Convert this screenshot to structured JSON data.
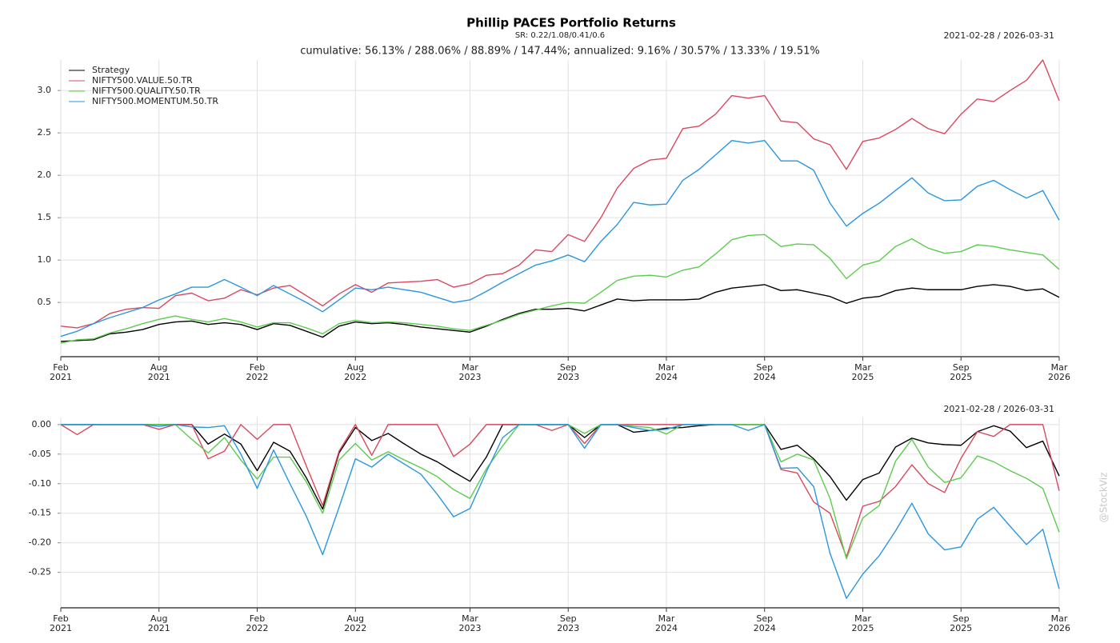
{
  "watermark": "@StockViz",
  "chart_data": [
    {
      "type": "line",
      "title": "Phillip PACES Portfolio Returns",
      "subtitle": "SR: 0.22/1.08/0.41/0.6",
      "annotation": "cumulative: 56.13% / 288.06% / 88.89% / 147.44%; annualized: 9.16% / 30.57% / 13.33% / 19.51%",
      "date_range": "2021-02-28 / 2026-03-31",
      "legend": "upper left",
      "grid": true,
      "x": [
        "2021-02",
        "2021-03",
        "2021-04",
        "2021-05",
        "2021-06",
        "2021-07",
        "2021-08",
        "2021-09",
        "2021-10",
        "2021-11",
        "2021-12",
        "2022-01",
        "2022-02",
        "2022-03",
        "2022-04",
        "2022-05",
        "2022-06",
        "2022-07",
        "2022-08",
        "2022-09",
        "2022-10",
        "2022-11",
        "2022-12",
        "2023-01",
        "2023-02",
        "2023-03",
        "2023-04",
        "2023-05",
        "2023-06",
        "2023-07",
        "2023-08",
        "2023-09",
        "2023-10",
        "2023-11",
        "2023-12",
        "2024-01",
        "2024-02",
        "2024-03",
        "2024-04",
        "2024-05",
        "2024-06",
        "2024-07",
        "2024-08",
        "2024-09",
        "2024-10",
        "2024-11",
        "2024-12",
        "2025-01",
        "2025-02",
        "2025-03",
        "2025-04",
        "2025-05",
        "2025-06",
        "2025-07",
        "2025-08",
        "2025-09",
        "2025-10",
        "2025-11",
        "2025-12",
        "2026-01",
        "2026-02",
        "2026-03"
      ],
      "xticks": [
        {
          "value": "2021-02",
          "label": "Feb 2021"
        },
        {
          "value": "2021-08",
          "label": "Aug 2021"
        },
        {
          "value": "2022-02",
          "label": "Feb 2022"
        },
        {
          "value": "2022-08",
          "label": "Aug 2022"
        },
        {
          "value": "2023-03",
          "label": "Mar 2023"
        },
        {
          "value": "2023-09",
          "label": "Sep 2023"
        },
        {
          "value": "2024-03",
          "label": "Mar 2024"
        },
        {
          "value": "2024-09",
          "label": "Sep 2024"
        },
        {
          "value": "2025-03",
          "label": "Mar 2025"
        },
        {
          "value": "2025-09",
          "label": "Sep 2025"
        },
        {
          "value": "2026-03",
          "label": "Mar 2026"
        }
      ],
      "ylim": [
        -0.14,
        3.36
      ],
      "yticks": [
        {
          "value": 0.5,
          "label": "0.5"
        },
        {
          "value": 1,
          "label": "1.0"
        },
        {
          "value": 1.5,
          "label": "1.5"
        },
        {
          "value": 2,
          "label": "2.0"
        },
        {
          "value": 2.5,
          "label": "2.5"
        },
        {
          "value": 3,
          "label": "3.0"
        }
      ],
      "series": [
        {
          "name": "Strategy",
          "color": "#000000",
          "values": [
            0.04,
            0.05,
            0.06,
            0.13,
            0.15,
            0.18,
            0.24,
            0.27,
            0.28,
            0.24,
            0.26,
            0.24,
            0.18,
            0.25,
            0.23,
            0.16,
            0.09,
            0.22,
            0.27,
            0.25,
            0.26,
            0.24,
            0.21,
            0.19,
            0.17,
            0.15,
            0.22,
            0.3,
            0.37,
            0.42,
            0.42,
            0.43,
            0.4,
            0.47,
            0.54,
            0.52,
            0.53,
            0.53,
            0.53,
            0.54,
            0.62,
            0.67,
            0.69,
            0.71,
            0.64,
            0.65,
            0.61,
            0.57,
            0.49,
            0.55,
            0.57,
            0.64,
            0.67,
            0.65,
            0.65,
            0.65,
            0.69,
            0.71,
            0.69,
            0.64,
            0.66,
            0.56
          ]
        },
        {
          "name": "NIFTY500.VALUE.50.TR",
          "color": "#d9485f",
          "values": [
            0.22,
            0.2,
            0.25,
            0.37,
            0.42,
            0.44,
            0.43,
            0.58,
            0.61,
            0.52,
            0.55,
            0.65,
            0.59,
            0.67,
            0.7,
            0.58,
            0.46,
            0.6,
            0.71,
            0.62,
            0.73,
            0.74,
            0.75,
            0.77,
            0.68,
            0.72,
            0.82,
            0.84,
            0.94,
            1.12,
            1.1,
            1.3,
            1.22,
            1.5,
            1.85,
            2.08,
            2.18,
            2.2,
            2.55,
            2.58,
            2.72,
            2.94,
            2.91,
            2.94,
            2.64,
            2.62,
            2.43,
            2.36,
            2.07,
            2.4,
            2.44,
            2.54,
            2.67,
            2.55,
            2.49,
            2.72,
            2.9,
            2.87,
            3.0,
            3.12,
            3.36,
            2.88
          ]
        },
        {
          "name": "NIFTY500.QUALITY.50.TR",
          "color": "#5ccc4e",
          "values": [
            0.02,
            0.06,
            0.07,
            0.14,
            0.19,
            0.25,
            0.3,
            0.34,
            0.3,
            0.27,
            0.31,
            0.27,
            0.21,
            0.26,
            0.26,
            0.2,
            0.13,
            0.25,
            0.29,
            0.26,
            0.27,
            0.26,
            0.24,
            0.22,
            0.19,
            0.17,
            0.23,
            0.29,
            0.36,
            0.41,
            0.46,
            0.5,
            0.49,
            0.62,
            0.76,
            0.81,
            0.82,
            0.8,
            0.88,
            0.92,
            1.07,
            1.24,
            1.29,
            1.3,
            1.16,
            1.19,
            1.18,
            1.02,
            0.78,
            0.94,
            0.99,
            1.16,
            1.25,
            1.14,
            1.08,
            1.1,
            1.18,
            1.16,
            1.12,
            1.09,
            1.06,
            0.89
          ]
        },
        {
          "name": "NIFTY500.MOMENTUM.50.TR",
          "color": "#2a96e0",
          "values": [
            0.1,
            0.16,
            0.25,
            0.32,
            0.38,
            0.44,
            0.53,
            0.6,
            0.68,
            0.68,
            0.77,
            0.68,
            0.58,
            0.7,
            0.6,
            0.5,
            0.39,
            0.53,
            0.67,
            0.65,
            0.68,
            0.65,
            0.62,
            0.56,
            0.5,
            0.53,
            0.63,
            0.74,
            0.84,
            0.94,
            0.99,
            1.06,
            0.98,
            1.22,
            1.42,
            1.68,
            1.65,
            1.66,
            1.94,
            2.07,
            2.24,
            2.41,
            2.38,
            2.41,
            2.17,
            2.17,
            2.06,
            1.67,
            1.4,
            1.55,
            1.67,
            1.82,
            1.97,
            1.79,
            1.7,
            1.71,
            1.87,
            1.94,
            1.83,
            1.73,
            1.82,
            1.47
          ]
        }
      ]
    },
    {
      "type": "line",
      "date_range": "2021-02-28 / 2026-03-31",
      "grid": true,
      "x": [
        "2021-02",
        "2021-03",
        "2021-04",
        "2021-05",
        "2021-06",
        "2021-07",
        "2021-08",
        "2021-09",
        "2021-10",
        "2021-11",
        "2021-12",
        "2022-01",
        "2022-02",
        "2022-03",
        "2022-04",
        "2022-05",
        "2022-06",
        "2022-07",
        "2022-08",
        "2022-09",
        "2022-10",
        "2022-11",
        "2022-12",
        "2023-01",
        "2023-02",
        "2023-03",
        "2023-04",
        "2023-05",
        "2023-06",
        "2023-07",
        "2023-08",
        "2023-09",
        "2023-10",
        "2023-11",
        "2023-12",
        "2024-01",
        "2024-02",
        "2024-03",
        "2024-04",
        "2024-05",
        "2024-06",
        "2024-07",
        "2024-08",
        "2024-09",
        "2024-10",
        "2024-11",
        "2024-12",
        "2025-01",
        "2025-02",
        "2025-03",
        "2025-04",
        "2025-05",
        "2025-06",
        "2025-07",
        "2025-08",
        "2025-09",
        "2025-10",
        "2025-11",
        "2025-12",
        "2026-01",
        "2026-02",
        "2026-03"
      ],
      "xticks": [
        {
          "value": "2021-02",
          "label": "Feb 2021"
        },
        {
          "value": "2021-08",
          "label": "Aug 2021"
        },
        {
          "value": "2022-02",
          "label": "Feb 2022"
        },
        {
          "value": "2022-08",
          "label": "Aug 2022"
        },
        {
          "value": "2023-03",
          "label": "Mar 2023"
        },
        {
          "value": "2023-09",
          "label": "Sep 2023"
        },
        {
          "value": "2024-03",
          "label": "Mar 2024"
        },
        {
          "value": "2024-09",
          "label": "Sep 2024"
        },
        {
          "value": "2025-03",
          "label": "Mar 2025"
        },
        {
          "value": "2025-09",
          "label": "Sep 2025"
        },
        {
          "value": "2026-03",
          "label": "Mar 2026"
        }
      ],
      "ylim": [
        -0.31,
        0.012
      ],
      "yticks": [
        {
          "value": -0.25,
          "label": "-0.25"
        },
        {
          "value": -0.2,
          "label": "-0.20"
        },
        {
          "value": -0.15,
          "label": "-0.15"
        },
        {
          "value": -0.1,
          "label": "-0.10"
        },
        {
          "value": -0.05,
          "label": "-0.05"
        },
        {
          "value": 0,
          "label": "0.00"
        }
      ],
      "series": [
        {
          "color": "#000000",
          "values": [
            0,
            0,
            0,
            0,
            0,
            0,
            0,
            0,
            0,
            -0.033,
            -0.016,
            -0.033,
            -0.078,
            -0.03,
            -0.045,
            -0.09,
            -0.143,
            -0.048,
            -0.005,
            -0.027,
            -0.015,
            -0.033,
            -0.05,
            -0.063,
            -0.08,
            -0.096,
            -0.055,
            0,
            0,
            0,
            0,
            0,
            -0.022,
            0,
            0,
            -0.013,
            -0.01,
            -0.006,
            -0.005,
            -0.002,
            0,
            0,
            0,
            0,
            -0.042,
            -0.035,
            -0.058,
            -0.088,
            -0.128,
            -0.093,
            -0.082,
            -0.038,
            -0.023,
            -0.031,
            -0.034,
            -0.035,
            -0.012,
            -0.002,
            -0.011,
            -0.039,
            -0.028,
            -0.087
          ]
        },
        {
          "color": "#d9485f",
          "values": [
            0,
            -0.017,
            0,
            0,
            0,
            0,
            -0.008,
            0,
            0,
            -0.058,
            -0.045,
            0,
            -0.025,
            0,
            0,
            -0.07,
            -0.137,
            -0.045,
            0,
            -0.052,
            0,
            0,
            0,
            0,
            -0.054,
            -0.033,
            0,
            0,
            0,
            0,
            -0.01,
            0,
            -0.032,
            0,
            0,
            0,
            0,
            0,
            0,
            0,
            0,
            0,
            0,
            0,
            -0.076,
            -0.082,
            -0.131,
            -0.15,
            -0.224,
            -0.138,
            -0.13,
            -0.105,
            -0.068,
            -0.1,
            -0.115,
            -0.057,
            -0.012,
            -0.02,
            0,
            0,
            0,
            -0.112
          ]
        },
        {
          "color": "#5ccc4e",
          "values": [
            0,
            0,
            0,
            0,
            0,
            0,
            0,
            0,
            -0.025,
            -0.048,
            -0.022,
            -0.06,
            -0.092,
            -0.055,
            -0.055,
            -0.097,
            -0.15,
            -0.06,
            -0.032,
            -0.06,
            -0.046,
            -0.06,
            -0.073,
            -0.088,
            -0.11,
            -0.125,
            -0.075,
            -0.036,
            0,
            0,
            0,
            0,
            -0.015,
            0,
            0,
            -0.003,
            -0.005,
            -0.016,
            0,
            0,
            0,
            0,
            0,
            0,
            -0.063,
            -0.05,
            -0.06,
            -0.125,
            -0.227,
            -0.158,
            -0.137,
            -0.062,
            -0.025,
            -0.072,
            -0.098,
            -0.09,
            -0.053,
            -0.063,
            -0.078,
            -0.091,
            -0.108,
            -0.182
          ]
        },
        {
          "color": "#2a96e0",
          "values": [
            0,
            0,
            0,
            0,
            0,
            0,
            -0.003,
            0,
            -0.004,
            -0.005,
            -0.002,
            -0.05,
            -0.108,
            -0.043,
            -0.1,
            -0.155,
            -0.22,
            -0.14,
            -0.058,
            -0.072,
            -0.05,
            -0.067,
            -0.084,
            -0.118,
            -0.156,
            -0.142,
            -0.08,
            -0.022,
            0,
            0,
            0,
            0,
            -0.04,
            0,
            0,
            -0.005,
            -0.01,
            -0.008,
            0,
            0,
            0,
            0,
            -0.01,
            0,
            -0.074,
            -0.073,
            -0.105,
            -0.218,
            -0.294,
            -0.253,
            -0.222,
            -0.18,
            -0.133,
            -0.185,
            -0.212,
            -0.207,
            -0.16,
            -0.14,
            -0.172,
            -0.203,
            -0.177,
            -0.278
          ]
        }
      ]
    }
  ]
}
